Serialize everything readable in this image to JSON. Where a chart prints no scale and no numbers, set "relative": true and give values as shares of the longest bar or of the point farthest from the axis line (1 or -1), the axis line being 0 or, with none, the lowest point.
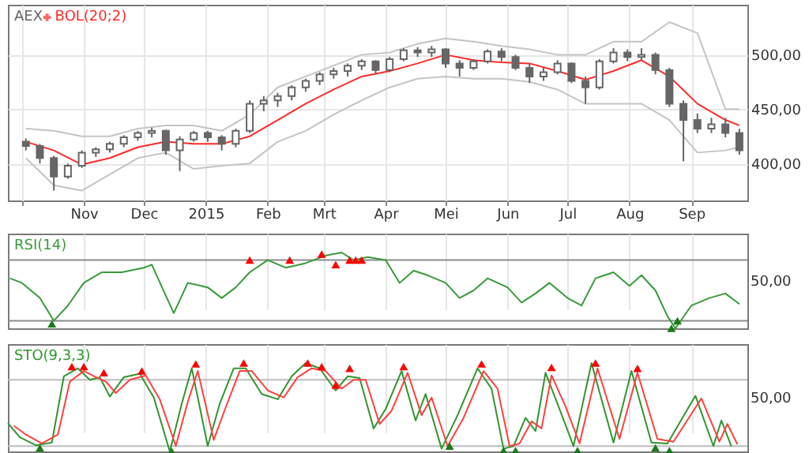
{
  "chart_data": [
    {
      "type": "candlestick",
      "legend": "top left",
      "grid": true,
      "xlim": [
        "2014-09-24",
        "2015-09-29"
      ],
      "ylim": [
        366,
        546
      ],
      "xticks": [
        {
          "value": "2014-10-01",
          "label": null
        },
        {
          "value": "2014-11-01",
          "label": "Nov"
        },
        {
          "value": "2014-12-01",
          "label": "Dec"
        },
        {
          "value": "2015-01-01",
          "label": "2015"
        },
        {
          "value": "2015-02-01",
          "label": "Feb"
        },
        {
          "value": "2015-03-01",
          "label": "Mrt"
        },
        {
          "value": "2015-04-01",
          "label": "Apr"
        },
        {
          "value": "2015-05-01",
          "label": "Mei"
        },
        {
          "value": "2015-06-01",
          "label": "Jun"
        },
        {
          "value": "2015-07-01",
          "label": "Jul"
        },
        {
          "value": "2015-08-01",
          "label": "Aug"
        },
        {
          "value": "2015-09-01",
          "label": "Sep"
        }
      ],
      "yticks": [
        {
          "value": 400,
          "label": "400,00"
        },
        {
          "value": 450,
          "label": "450,00"
        },
        {
          "value": 500,
          "label": "500,00"
        }
      ],
      "series": [
        {
          "name": "AEX",
          "color": "#666666",
          "x": [
            "2014-10-03",
            "2014-10-10",
            "2014-10-17",
            "2014-10-24",
            "2014-10-31",
            "2014-11-07",
            "2014-11-14",
            "2014-11-21",
            "2014-11-28",
            "2014-12-05",
            "2014-12-12",
            "2014-12-19",
            "2014-12-26",
            "2015-01-02",
            "2015-01-09",
            "2015-01-16",
            "2015-01-23",
            "2015-01-30",
            "2015-02-06",
            "2015-02-13",
            "2015-02-20",
            "2015-02-27",
            "2015-03-06",
            "2015-03-13",
            "2015-03-20",
            "2015-03-27",
            "2015-04-03",
            "2015-04-10",
            "2015-04-17",
            "2015-04-24",
            "2015-05-01",
            "2015-05-08",
            "2015-05-15",
            "2015-05-22",
            "2015-05-29",
            "2015-06-05",
            "2015-06-12",
            "2015-06-19",
            "2015-06-26",
            "2015-07-03",
            "2015-07-10",
            "2015-07-17",
            "2015-07-24",
            "2015-07-31",
            "2015-08-07",
            "2015-08-14",
            "2015-08-21",
            "2015-08-28",
            "2015-09-04",
            "2015-09-11",
            "2015-09-18",
            "2015-09-25"
          ],
          "ohlc": [
            [
              420,
              423,
              412,
              416
            ],
            [
              416,
              418,
              400,
              405
            ],
            [
              405,
              407,
              375,
              388
            ],
            [
              388,
              400,
              386,
              398
            ],
            [
              398,
              412,
              396,
              410
            ],
            [
              410,
              415,
              406,
              413
            ],
            [
              413,
              420,
              410,
              418
            ],
            [
              418,
              426,
              415,
              424
            ],
            [
              424,
              430,
              421,
              428
            ],
            [
              428,
              433,
              424,
              430
            ],
            [
              430,
              431,
              408,
              412
            ],
            [
              412,
              425,
              393,
              422
            ],
            [
              422,
              430,
              420,
              428
            ],
            [
              428,
              430,
              420,
              424
            ],
            [
              424,
              426,
              412,
              418
            ],
            [
              418,
              432,
              415,
              430
            ],
            [
              430,
              458,
              428,
              455
            ],
            [
              455,
              462,
              448,
              458
            ],
            [
              458,
              465,
              452,
              462
            ],
            [
              462,
              472,
              458,
              470
            ],
            [
              470,
              478,
              466,
              476
            ],
            [
              476,
              484,
              472,
              482
            ],
            [
              482,
              488,
              478,
              485
            ],
            [
              485,
              492,
              480,
              490
            ],
            [
              490,
              496,
              486,
              494
            ],
            [
              494,
              495,
              482,
              486
            ],
            [
              486,
              498,
              484,
              496
            ],
            [
              496,
              506,
              494,
              504
            ],
            [
              504,
              507,
              498,
              502
            ],
            [
              502,
              508,
              498,
              505
            ],
            [
              505,
              506,
              488,
              492
            ],
            [
              492,
              495,
              480,
              488
            ],
            [
              488,
              496,
              486,
              494
            ],
            [
              494,
              505,
              492,
              503
            ],
            [
              503,
              506,
              494,
              498
            ],
            [
              498,
              500,
              486,
              488
            ],
            [
              488,
              492,
              474,
              480
            ],
            [
              480,
              488,
              476,
              484
            ],
            [
              484,
              495,
              482,
              492
            ],
            [
              492,
              493,
              474,
              476
            ],
            [
              476,
              480,
              455,
              470
            ],
            [
              470,
              496,
              468,
              494
            ],
            [
              494,
              506,
              492,
              502
            ],
            [
              502,
              505,
              494,
              498
            ],
            [
              498,
              506,
              495,
              500
            ],
            [
              500,
              502,
              482,
              486
            ],
            [
              486,
              488,
              452,
              455
            ],
            [
              455,
              458,
              402,
              440
            ],
            [
              440,
              446,
              428,
              432
            ],
            [
              432,
              442,
              428,
              436
            ],
            [
              436,
              442,
              424,
              428
            ],
            [
              428,
              432,
              408,
              412
            ]
          ]
        },
        {
          "type": "line",
          "color": "#c4c4c4",
          "x": [
            "2014-10-03",
            "2014-10-17",
            "2014-10-31",
            "2014-11-14",
            "2014-11-28",
            "2014-12-12",
            "2014-12-26",
            "2015-01-09",
            "2015-01-23",
            "2015-02-06",
            "2015-02-20",
            "2015-03-06",
            "2015-03-20",
            "2015-04-03",
            "2015-04-17",
            "2015-05-01",
            "2015-05-15",
            "2015-05-29",
            "2015-06-12",
            "2015-06-26",
            "2015-07-10",
            "2015-07-24",
            "2015-08-07",
            "2015-08-21",
            "2015-09-04",
            "2015-09-18",
            "2015-09-25"
          ],
          "values": [
            432,
            430,
            425,
            425,
            432,
            435,
            435,
            430,
            445,
            470,
            480,
            490,
            500,
            502,
            510,
            515,
            512,
            508,
            505,
            500,
            500,
            512,
            512,
            530,
            520,
            450,
            450
          ]
        },
        {
          "type": "line",
          "color": "#c4c4c4",
          "x": [
            "2014-10-03",
            "2014-10-17",
            "2014-10-31",
            "2014-11-14",
            "2014-11-28",
            "2014-12-12",
            "2014-12-26",
            "2015-01-09",
            "2015-01-23",
            "2015-02-06",
            "2015-02-20",
            "2015-03-06",
            "2015-03-20",
            "2015-04-03",
            "2015-04-17",
            "2015-05-01",
            "2015-05-15",
            "2015-05-29",
            "2015-06-12",
            "2015-06-26",
            "2015-07-10",
            "2015-07-24",
            "2015-08-07",
            "2015-08-21",
            "2015-09-04",
            "2015-09-18",
            "2015-09-25"
          ],
          "values": [
            405,
            380,
            375,
            390,
            405,
            410,
            395,
            398,
            400,
            420,
            430,
            445,
            458,
            470,
            478,
            480,
            478,
            478,
            475,
            468,
            455,
            455,
            455,
            440,
            410,
            412,
            415
          ]
        },
        {
          "type": "line",
          "name": "BOL(20;2)",
          "color": "#ff2a2a",
          "x": [
            "2014-10-03",
            "2014-10-17",
            "2014-10-31",
            "2014-11-14",
            "2014-11-28",
            "2014-12-12",
            "2014-12-26",
            "2015-01-09",
            "2015-01-23",
            "2015-02-06",
            "2015-02-20",
            "2015-03-06",
            "2015-03-20",
            "2015-04-03",
            "2015-04-17",
            "2015-05-01",
            "2015-05-15",
            "2015-05-29",
            "2015-06-12",
            "2015-06-26",
            "2015-07-10",
            "2015-07-24",
            "2015-08-07",
            "2015-08-21",
            "2015-09-04",
            "2015-09-18",
            "2015-09-25"
          ],
          "values": [
            420,
            412,
            399,
            405,
            415,
            420,
            418,
            418,
            425,
            440,
            455,
            468,
            480,
            485,
            492,
            500,
            495,
            493,
            492,
            485,
            477,
            485,
            495,
            480,
            455,
            440,
            435
          ]
        }
      ]
    },
    {
      "type": "line",
      "legend": "top left",
      "grid": "x",
      "tick_labels": false,
      "relative": true,
      "xlim": [
        "2014-09-24",
        "2015-09-29"
      ],
      "xticks": [
        {
          "value": "2014-11-01",
          "label": null
        },
        {
          "value": "2014-12-01",
          "label": null
        },
        {
          "value": "2015-01-01",
          "label": null
        },
        {
          "value": "2015-02-01",
          "label": null
        },
        {
          "value": "2015-03-01",
          "label": null
        },
        {
          "value": "2015-04-01",
          "label": null
        },
        {
          "value": "2015-05-01",
          "label": null
        },
        {
          "value": "2015-06-01",
          "label": null
        },
        {
          "value": "2015-07-01",
          "label": null
        },
        {
          "value": "2015-08-01",
          "label": null
        },
        {
          "value": "2015-09-01",
          "label": null
        }
      ],
      "annotations": [
        "50,00"
      ],
      "ref_lines": [
        {
          "axis": "y",
          "value": 0.9,
          "color": "#8c8c8c"
        },
        {
          "axis": "y",
          "value": 0.1,
          "color": "#8c8c8c"
        }
      ],
      "series": [
        {
          "name": "RSI(14)",
          "color": "#3a9a3a",
          "x": [
            "2014-09-25",
            "2014-10-01",
            "2014-10-10",
            "2014-10-17",
            "2014-10-24",
            "2014-11-01",
            "2014-11-10",
            "2014-11-20",
            "2014-12-01",
            "2014-12-05",
            "2014-12-16",
            "2014-12-23",
            "2015-01-02",
            "2015-01-09",
            "2015-01-16",
            "2015-01-23",
            "2015-02-01",
            "2015-02-10",
            "2015-02-20",
            "2015-03-02",
            "2015-03-10",
            "2015-03-16",
            "2015-03-23",
            "2015-04-01",
            "2015-04-08",
            "2015-04-15",
            "2015-04-22",
            "2015-05-01",
            "2015-05-08",
            "2015-05-15",
            "2015-05-22",
            "2015-06-01",
            "2015-06-08",
            "2015-06-15",
            "2015-06-22",
            "2015-07-01",
            "2015-07-08",
            "2015-07-15",
            "2015-07-24",
            "2015-08-01",
            "2015-08-07",
            "2015-08-14",
            "2015-08-20",
            "2015-08-24",
            "2015-09-01",
            "2015-09-10",
            "2015-09-18",
            "2015-09-25"
          ],
          "values": [
            0.66,
            0.6,
            0.4,
            0.1,
            0.3,
            0.6,
            0.74,
            0.74,
            0.8,
            0.84,
            0.2,
            0.6,
            0.54,
            0.4,
            0.54,
            0.74,
            0.9,
            0.8,
            0.86,
            0.96,
            1,
            0.9,
            0.94,
            0.9,
            0.6,
            0.76,
            0.7,
            0.6,
            0.4,
            0.5,
            0.66,
            0.54,
            0.34,
            0.46,
            0.6,
            0.4,
            0.3,
            0.66,
            0.74,
            0.56,
            0.7,
            0.5,
            0.16,
            0,
            0.3,
            0.4,
            0.46,
            0.32
          ]
        },
        {
          "type": "scatter",
          "marker": "triangle",
          "color": "#ff0000",
          "x": [
            "2015-01-23",
            "2015-02-12",
            "2015-02-28",
            "2015-03-07",
            "2015-03-14",
            "2015-03-17",
            "2015-03-20"
          ],
          "values": [
            0.9,
            0.9,
            0.98,
            0.84,
            0.9,
            0.9,
            0.9
          ]
        },
        {
          "type": "scatter",
          "marker": "triangle",
          "color": "#1a7a1a",
          "x": [
            "2014-10-16",
            "2015-08-22",
            "2015-08-25"
          ],
          "values": [
            0.06,
            0,
            0.1
          ]
        }
      ]
    },
    {
      "type": "line",
      "legend": "top left",
      "grid": "x",
      "tick_labels": false,
      "relative": true,
      "xlim": [
        "2014-09-24",
        "2015-09-29"
      ],
      "xticks": [
        {
          "value": "2014-11-01",
          "label": null
        },
        {
          "value": "2014-12-01",
          "label": null
        },
        {
          "value": "2015-01-01",
          "label": null
        },
        {
          "value": "2015-02-01",
          "label": null
        },
        {
          "value": "2015-03-01",
          "label": null
        },
        {
          "value": "2015-04-01",
          "label": null
        },
        {
          "value": "2015-05-01",
          "label": null
        },
        {
          "value": "2015-06-01",
          "label": null
        },
        {
          "value": "2015-07-01",
          "label": null
        },
        {
          "value": "2015-08-01",
          "label": null
        },
        {
          "value": "2015-09-01",
          "label": null
        }
      ],
      "annotations": [
        "50,00"
      ],
      "ref_lines": [
        {
          "axis": "y",
          "value": 0.81,
          "color": "#bdbdbd"
        },
        {
          "axis": "y",
          "value": 0.06,
          "color": "#bdbdbd"
        }
      ],
      "series": [
        {
          "name": "STO(9,3,3)",
          "color": "#2f962f",
          "x": [
            "2014-09-24",
            "2014-09-30",
            "2014-10-08",
            "2014-10-16",
            "2014-10-22",
            "2014-10-29",
            "2014-11-04",
            "2014-11-09",
            "2014-11-14",
            "2014-11-21",
            "2014-11-29",
            "2014-12-06",
            "2014-12-14",
            "2014-12-20",
            "2014-12-25",
            "2015-01-02",
            "2015-01-08",
            "2015-01-15",
            "2015-01-21",
            "2015-01-29",
            "2015-02-06",
            "2015-02-13",
            "2015-02-20",
            "2015-02-27",
            "2015-03-07",
            "2015-03-13",
            "2015-03-19",
            "2015-03-26",
            "2015-04-01",
            "2015-04-09",
            "2015-04-16",
            "2015-04-21",
            "2015-04-29",
            "2015-05-07",
            "2015-05-17",
            "2015-05-24",
            "2015-05-30",
            "2015-06-04",
            "2015-06-10",
            "2015-06-15",
            "2015-06-20",
            "2015-06-27",
            "2015-07-04",
            "2015-07-13",
            "2015-07-24",
            "2015-08-02",
            "2015-08-12",
            "2015-08-20",
            "2015-09-03",
            "2015-09-12",
            "2015-09-16",
            "2015-09-21"
          ],
          "values": [
            0.32,
            0.16,
            0.07,
            0.1,
            0.85,
            0.94,
            0.81,
            0.84,
            0.62,
            0.84,
            0.88,
            0.61,
            0,
            0.54,
            0.94,
            0.06,
            0.54,
            0.94,
            0.94,
            0.65,
            0.59,
            0.85,
            1,
            0.94,
            0.69,
            0.85,
            0.83,
            0.26,
            0.48,
            0.91,
            0.35,
            0.65,
            0.03,
            0.41,
            0.94,
            0.71,
            0.03,
            0.06,
            0.38,
            0.23,
            0.89,
            0.48,
            0.06,
            1,
            0.1,
            0.91,
            0.1,
            0.09,
            0.63,
            0.06,
            0.35,
            0.06
          ]
        },
        {
          "color": "#ff4040",
          "x": [
            "2014-09-27",
            "2014-10-03",
            "2014-10-11",
            "2014-10-19",
            "2014-10-25",
            "2014-11-01",
            "2014-11-07",
            "2014-11-12",
            "2014-11-17",
            "2014-11-24",
            "2014-12-02",
            "2014-12-09",
            "2014-12-17",
            "2014-12-23",
            "2014-12-28",
            "2015-01-05",
            "2015-01-11",
            "2015-01-18",
            "2015-01-24",
            "2015-02-01",
            "2015-02-09",
            "2015-02-16",
            "2015-02-23",
            "2015-03-02",
            "2015-03-10",
            "2015-03-16",
            "2015-03-22",
            "2015-03-29",
            "2015-04-04",
            "2015-04-12",
            "2015-04-19",
            "2015-04-24",
            "2015-05-02",
            "2015-05-10",
            "2015-05-20",
            "2015-05-27",
            "2015-06-02",
            "2015-06-07",
            "2015-06-13",
            "2015-06-18",
            "2015-06-23",
            "2015-06-30",
            "2015-07-07",
            "2015-07-16",
            "2015-07-27",
            "2015-08-05",
            "2015-08-15",
            "2015-08-23",
            "2015-09-06",
            "2015-09-15",
            "2015-09-19",
            "2015-09-24"
          ],
          "values": [
            0.29,
            0.19,
            0.09,
            0.19,
            0.79,
            0.91,
            0.84,
            0.79,
            0.66,
            0.81,
            0.86,
            0.59,
            0.06,
            0.56,
            0.91,
            0.13,
            0.5,
            0.91,
            0.91,
            0.69,
            0.61,
            0.84,
            0.94,
            0.91,
            0.71,
            0.81,
            0.81,
            0.31,
            0.46,
            0.89,
            0.41,
            0.61,
            0.06,
            0.38,
            0.91,
            0.71,
            0.06,
            0.09,
            0.34,
            0.26,
            0.86,
            0.51,
            0.09,
            0.94,
            0.14,
            0.89,
            0.14,
            0.11,
            0.6,
            0.11,
            0.31,
            0.08
          ]
        },
        {
          "type": "scatter",
          "marker": "triangle",
          "color": "#ff0000",
          "x": [
            "2014-10-26",
            "2014-11-01",
            "2014-11-11",
            "2014-11-30",
            "2014-12-27",
            "2015-01-20",
            "2015-02-21",
            "2015-02-28",
            "2015-03-07",
            "2015-03-14",
            "2015-04-10",
            "2015-05-19",
            "2015-06-23",
            "2015-07-15",
            "2015-08-05"
          ],
          "values": [
            0.96,
            0.96,
            0.89,
            0.91,
            0.99,
            1,
            1,
            0.96,
            0.75,
            0.94,
            0.96,
            0.99,
            0.95,
            1,
            0.94
          ]
        },
        {
          "type": "scatter",
          "marker": "triangle",
          "color": "#1a7a1a",
          "x": [
            "2014-10-10",
            "2014-12-15",
            "2015-05-03",
            "2015-05-30",
            "2015-06-05",
            "2015-07-06",
            "2015-08-14",
            "2015-08-21"
          ],
          "values": [
            0.04,
            0,
            0.06,
            0.01,
            0.01,
            0.01,
            0.04,
            0.01
          ]
        }
      ]
    }
  ]
}
